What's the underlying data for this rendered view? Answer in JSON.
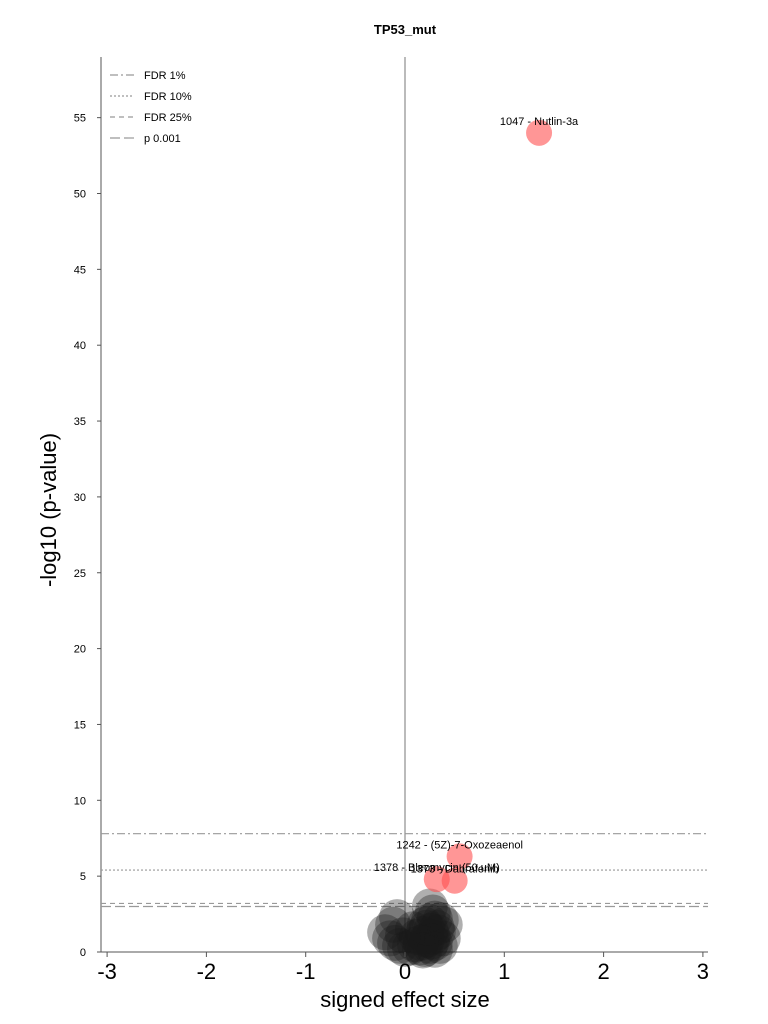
{
  "chart_data": {
    "type": "scatter",
    "title": "TP53_mut",
    "xlabel": "signed effect size",
    "ylabel": "-log10 (p-value)",
    "xlim": [
      -3,
      3
    ],
    "ylim": [
      0,
      59
    ],
    "x_ticks": [
      -3,
      -2,
      -1,
      0,
      1,
      2,
      3
    ],
    "x_tick_labels": [
      "-3",
      "-2",
      "-1",
      "0",
      "1",
      "2",
      "3"
    ],
    "y_ticks": [
      0,
      5,
      10,
      15,
      20,
      25,
      30,
      35,
      40,
      45,
      50,
      55
    ],
    "y_tick_labels": [
      "0",
      "5",
      "10",
      "15",
      "20",
      "25",
      "30",
      "35",
      "40",
      "45",
      "50",
      "55"
    ],
    "grid": false,
    "legend_position": "top-left",
    "thresholds": [
      {
        "name": "FDR 1%",
        "y": 7.8,
        "style": "dashdot"
      },
      {
        "name": "FDR 10%",
        "y": 5.4,
        "style": "dotted"
      },
      {
        "name": "FDR 25%",
        "y": 3.2,
        "style": "dashed"
      },
      {
        "name": "p 0.001",
        "y": 3.0,
        "style": "longdash"
      }
    ],
    "significant_points": [
      {
        "label": "1047 - Nutlin-3a",
        "x": 1.35,
        "y": 54.0
      },
      {
        "label": "1242 - (5Z)-7-Oxozeaenol",
        "x": 0.55,
        "y": 6.3
      },
      {
        "label": "1378 - Bleomycin (50 uM)",
        "x": 0.32,
        "y": 4.8
      },
      {
        "label": "1373 - Dabrafenib",
        "x": 0.5,
        "y": 4.7
      }
    ],
    "background_points": [
      {
        "x": 0.2,
        "y": 0.2
      },
      {
        "x": 0.25,
        "y": 0.4
      },
      {
        "x": 0.3,
        "y": 0.6
      },
      {
        "x": 0.15,
        "y": 0.3
      },
      {
        "x": 0.22,
        "y": 0.8
      },
      {
        "x": 0.28,
        "y": 1.0
      },
      {
        "x": 0.18,
        "y": 1.2
      },
      {
        "x": 0.26,
        "y": 1.4
      },
      {
        "x": 0.32,
        "y": 1.6
      },
      {
        "x": 0.2,
        "y": 1.8
      },
      {
        "x": 0.24,
        "y": 2.0
      },
      {
        "x": 0.3,
        "y": 2.2
      },
      {
        "x": 0.1,
        "y": 0.5
      },
      {
        "x": 0.05,
        "y": 0.3
      },
      {
        "x": 0.0,
        "y": 0.2
      },
      {
        "x": -0.05,
        "y": 0.4
      },
      {
        "x": -0.1,
        "y": 0.6
      },
      {
        "x": -0.15,
        "y": 0.9
      },
      {
        "x": -0.2,
        "y": 1.3
      },
      {
        "x": -0.12,
        "y": 1.8
      },
      {
        "x": -0.08,
        "y": 2.3
      },
      {
        "x": 0.35,
        "y": 0.4
      },
      {
        "x": 0.38,
        "y": 0.9
      },
      {
        "x": 0.33,
        "y": 1.3
      },
      {
        "x": 0.28,
        "y": 2.6
      },
      {
        "x": 0.25,
        "y": 3.0
      },
      {
        "x": 0.4,
        "y": 1.8
      },
      {
        "x": 0.12,
        "y": 1.0
      },
      {
        "x": 0.08,
        "y": 1.5
      },
      {
        "x": 0.18,
        "y": 0.1
      },
      {
        "x": 0.3,
        "y": 0.15
      },
      {
        "x": -0.02,
        "y": 1.1
      },
      {
        "x": 0.22,
        "y": 1.6
      },
      {
        "x": 0.27,
        "y": 0.7
      },
      {
        "x": 0.16,
        "y": 0.6
      },
      {
        "x": 0.36,
        "y": 2.1
      }
    ]
  }
}
